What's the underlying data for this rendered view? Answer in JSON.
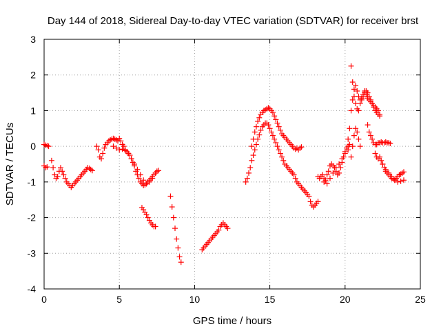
{
  "chart_data": {
    "type": "scatter",
    "title": "Day 144 of 2018, Sidereal Day-to-day VTEC variation (SDTVAR) for receiver brst",
    "xlabel": "GPS time / hours",
    "ylabel": "SDTVAR / TECUs",
    "xlim": [
      0,
      25
    ],
    "ylim": [
      -4,
      3
    ],
    "xticks": [
      0,
      5,
      10,
      15,
      20,
      25
    ],
    "yticks": [
      -4,
      -3,
      -2,
      -1,
      0,
      1,
      2,
      3
    ],
    "grid": true,
    "marker": "+",
    "color": "#ff0000",
    "segments": [
      {
        "x": [
          0.0,
          0.1,
          0.2
        ],
        "y": [
          -0.55,
          -0.6,
          -0.58
        ]
      },
      {
        "x": [
          0.0,
          0.1,
          0.2,
          0.3
        ],
        "y": [
          0.05,
          0.03,
          0.02,
          0.0
        ]
      },
      {
        "x": [
          0.5,
          0.6,
          0.7,
          0.8,
          0.9,
          1.0,
          1.1,
          1.2,
          1.3,
          1.4
        ],
        "y": [
          -0.4,
          -0.6,
          -0.8,
          -0.9,
          -0.85,
          -0.7,
          -0.6,
          -0.7,
          -0.8,
          -0.9
        ]
      },
      {
        "x": [
          1.5,
          1.6,
          1.7,
          1.8,
          1.9,
          2.0,
          2.1,
          2.2,
          2.3,
          2.4,
          2.5,
          2.6,
          2.7,
          2.8,
          2.9,
          3.0,
          3.1,
          3.2
        ],
        "y": [
          -1.0,
          -1.05,
          -1.1,
          -1.15,
          -1.1,
          -1.05,
          -1.0,
          -0.95,
          -0.9,
          -0.85,
          -0.8,
          -0.75,
          -0.7,
          -0.65,
          -0.6,
          -0.62,
          -0.65,
          -0.68
        ]
      },
      {
        "x": [
          3.5,
          3.6,
          3.7,
          3.8,
          3.9,
          4.0,
          4.1,
          4.2,
          4.3,
          4.4,
          4.5,
          4.6,
          4.7,
          4.8,
          4.9,
          5.0,
          5.1,
          5.2,
          5.3,
          5.4,
          5.5,
          5.6,
          5.7,
          5.8,
          5.9,
          6.0,
          6.1,
          6.2,
          6.3,
          6.4,
          6.5,
          6.6,
          6.7,
          6.8,
          6.9,
          7.0,
          7.1,
          7.2,
          7.3,
          7.4,
          7.5,
          7.6
        ],
        "y": [
          0.0,
          -0.1,
          -0.3,
          -0.35,
          -0.2,
          -0.05,
          0.05,
          0.1,
          0.15,
          0.18,
          0.2,
          0.22,
          0.2,
          0.18,
          0.15,
          0.22,
          0.15,
          0.05,
          0.0,
          -0.1,
          -0.15,
          -0.2,
          -0.25,
          -0.35,
          -0.45,
          -0.55,
          -0.7,
          -0.8,
          -0.9,
          -1.0,
          -1.05,
          -1.1,
          -1.08,
          -1.05,
          -1.0,
          -0.95,
          -0.9,
          -0.85,
          -0.8,
          -0.75,
          -0.7,
          -0.68
        ]
      },
      {
        "x": [
          4.6,
          4.8,
          5.0,
          5.2,
          5.4,
          5.6,
          5.8,
          6.0,
          6.2,
          6.4,
          6.6,
          6.8,
          7.0,
          7.2
        ],
        "y": [
          0.0,
          -0.05,
          -0.1,
          -0.08,
          -0.12,
          -0.2,
          -0.35,
          -0.5,
          -0.65,
          -0.8,
          -0.95,
          -1.05,
          -1.0,
          -0.9
        ]
      },
      {
        "x": [
          6.5,
          6.6,
          6.7,
          6.8,
          6.9,
          7.0,
          7.1,
          7.2,
          7.3,
          7.4
        ],
        "y": [
          -1.72,
          -1.78,
          -1.85,
          -1.92,
          -2.0,
          -2.08,
          -2.15,
          -2.2,
          -2.25,
          -2.25
        ]
      },
      {
        "x": [
          8.4,
          8.5,
          8.6,
          8.7,
          8.8,
          8.9,
          9.0,
          9.1
        ],
        "y": [
          -1.4,
          -1.7,
          -2.0,
          -2.3,
          -2.6,
          -2.85,
          -3.1,
          -3.25
        ]
      },
      {
        "x": [
          10.5,
          10.6,
          10.7,
          10.8,
          10.9,
          11.0,
          11.1,
          11.2,
          11.3,
          11.4,
          11.5,
          11.6,
          11.7,
          11.8,
          11.9,
          12.0,
          12.1,
          12.2
        ],
        "y": [
          -2.9,
          -2.85,
          -2.8,
          -2.75,
          -2.7,
          -2.65,
          -2.6,
          -2.55,
          -2.5,
          -2.45,
          -2.4,
          -2.35,
          -2.25,
          -2.2,
          -2.15,
          -2.2,
          -2.25,
          -2.3
        ]
      },
      {
        "x": [
          13.4,
          13.5,
          13.6,
          13.7,
          13.8,
          13.9,
          14.0,
          14.1,
          14.2,
          14.3,
          14.4,
          14.5,
          14.6,
          14.7,
          14.8,
          14.9,
          15.0,
          15.1,
          15.2,
          15.3,
          15.4,
          15.5,
          15.6,
          15.7,
          15.8,
          15.9,
          16.0,
          16.1,
          16.2,
          16.3,
          16.4,
          16.5,
          16.6,
          16.7,
          16.8,
          16.9,
          17.0,
          17.1,
          17.2,
          17.3,
          17.4,
          17.5,
          17.6,
          17.7,
          17.8,
          17.9,
          18.0,
          18.1,
          18.2
        ],
        "y": [
          -1.0,
          -0.9,
          -0.75,
          -0.6,
          -0.4,
          -0.25,
          -0.1,
          0.05,
          0.2,
          0.32,
          0.45,
          0.55,
          0.6,
          0.65,
          0.65,
          0.6,
          0.5,
          0.4,
          0.3,
          0.2,
          0.1,
          0.0,
          -0.1,
          -0.2,
          -0.3,
          -0.4,
          -0.5,
          -0.55,
          -0.6,
          -0.65,
          -0.7,
          -0.75,
          -0.8,
          -0.9,
          -1.0,
          -1.05,
          -1.1,
          -1.15,
          -1.2,
          -1.25,
          -1.3,
          -1.35,
          -1.4,
          -1.55,
          -1.65,
          -1.7,
          -1.65,
          -1.6,
          -1.55
        ]
      },
      {
        "x": [
          13.8,
          13.9,
          14.0,
          14.1,
          14.2,
          14.3,
          14.4,
          14.5,
          14.6,
          14.7,
          14.8,
          14.9,
          15.0,
          15.1,
          15.2,
          15.3,
          15.4,
          15.5,
          15.6,
          15.7,
          15.8,
          15.9,
          16.0,
          16.1,
          16.2,
          16.3,
          16.4,
          16.5,
          16.6,
          16.7,
          16.8,
          16.9,
          17.0,
          17.1
        ],
        "y": [
          0.0,
          0.2,
          0.4,
          0.55,
          0.7,
          0.8,
          0.9,
          0.95,
          1.0,
          1.02,
          1.05,
          1.08,
          1.05,
          1.0,
          0.95,
          0.85,
          0.75,
          0.65,
          0.55,
          0.45,
          0.35,
          0.3,
          0.25,
          0.2,
          0.15,
          0.1,
          0.05,
          0.0,
          -0.05,
          -0.08,
          -0.05,
          -0.1,
          -0.05,
          -0.02
        ]
      },
      {
        "x": [
          18.2,
          18.3,
          18.4,
          18.5,
          18.6,
          18.7,
          18.8,
          18.9,
          19.0,
          19.1,
          19.2,
          19.3,
          19.4,
          19.5,
          19.6,
          19.7,
          19.8,
          19.9,
          20.0,
          20.1,
          20.2,
          20.3
        ],
        "y": [
          -0.85,
          -0.9,
          -0.85,
          -0.8,
          -0.9,
          -0.95,
          -0.8,
          -0.7,
          -0.55,
          -0.5,
          -0.55,
          -0.6,
          -0.7,
          -0.8,
          -0.75,
          -0.6,
          -0.45,
          -0.3,
          -0.15,
          -0.05,
          0.0,
          0.05
        ]
      },
      {
        "x": [
          18.6,
          18.8,
          19.0,
          19.2,
          19.4,
          19.6,
          19.8,
          20.0,
          20.2
        ],
        "y": [
          -1.0,
          -1.05,
          -0.9,
          -0.75,
          -0.6,
          -0.5,
          -0.35,
          -0.2,
          -0.1
        ]
      },
      {
        "x": [
          20.2,
          20.3,
          20.4,
          20.5,
          20.6,
          20.7,
          20.8,
          20.9,
          21.0,
          21.1,
          21.2,
          21.3,
          21.4,
          21.5,
          21.6,
          21.7,
          21.8,
          21.9,
          22.0,
          22.1,
          22.2,
          22.3
        ],
        "y": [
          0.2,
          0.5,
          2.25,
          1.8,
          1.4,
          1.2,
          1.05,
          1.0,
          1.2,
          1.3,
          1.45,
          1.55,
          1.45,
          1.35,
          1.3,
          1.25,
          1.2,
          1.15,
          1.1,
          1.05,
          1.0,
          0.9
        ]
      },
      {
        "x": [
          20.4,
          20.5,
          20.6,
          20.7,
          20.8,
          20.9,
          21.0,
          21.1,
          21.2,
          21.3,
          21.4,
          21.5,
          21.6,
          21.7,
          21.8,
          21.9,
          22.0,
          22.1,
          22.2,
          22.3
        ],
        "y": [
          1.0,
          1.3,
          1.6,
          1.7,
          1.55,
          1.4,
          1.3,
          1.35,
          1.4,
          1.5,
          1.55,
          1.5,
          1.4,
          1.3,
          1.2,
          1.1,
          1.0,
          0.95,
          0.9,
          0.85
        ]
      },
      {
        "x": [
          20.4,
          20.5,
          20.6,
          20.7,
          20.8,
          20.9,
          21.0
        ],
        "y": [
          -0.3,
          0.0,
          0.3,
          0.5,
          0.4,
          0.2,
          0.0
        ]
      },
      {
        "x": [
          21.5,
          21.6,
          21.7,
          21.8,
          21.9,
          22.0,
          22.1,
          22.2,
          22.3,
          22.4,
          22.5,
          22.6,
          22.7,
          22.8,
          22.9,
          23.0
        ],
        "y": [
          0.6,
          0.4,
          0.3,
          0.2,
          0.1,
          0.05,
          0.05,
          0.1,
          0.1,
          0.12,
          0.1,
          0.1,
          0.12,
          0.1,
          0.1,
          0.08
        ]
      },
      {
        "x": [
          22.0,
          22.1,
          22.2,
          22.3,
          22.4,
          22.5,
          22.6,
          22.7,
          22.8,
          22.9,
          23.0,
          23.1,
          23.2,
          23.3,
          23.4,
          23.5,
          23.6,
          23.7,
          23.8,
          23.9
        ],
        "y": [
          -0.2,
          -0.3,
          -0.35,
          -0.3,
          -0.4,
          -0.5,
          -0.6,
          -0.7,
          -0.75,
          -0.8,
          -0.85,
          -0.9,
          -0.92,
          -0.95,
          -0.9,
          -0.85,
          -0.8,
          -0.78,
          -0.75,
          -0.72
        ]
      },
      {
        "x": [
          22.5,
          22.7,
          22.9,
          23.1,
          23.3,
          23.5,
          23.7,
          23.9
        ],
        "y": [
          -0.5,
          -0.65,
          -0.75,
          -0.85,
          -0.95,
          -1.0,
          -0.98,
          -0.95
        ]
      }
    ]
  }
}
